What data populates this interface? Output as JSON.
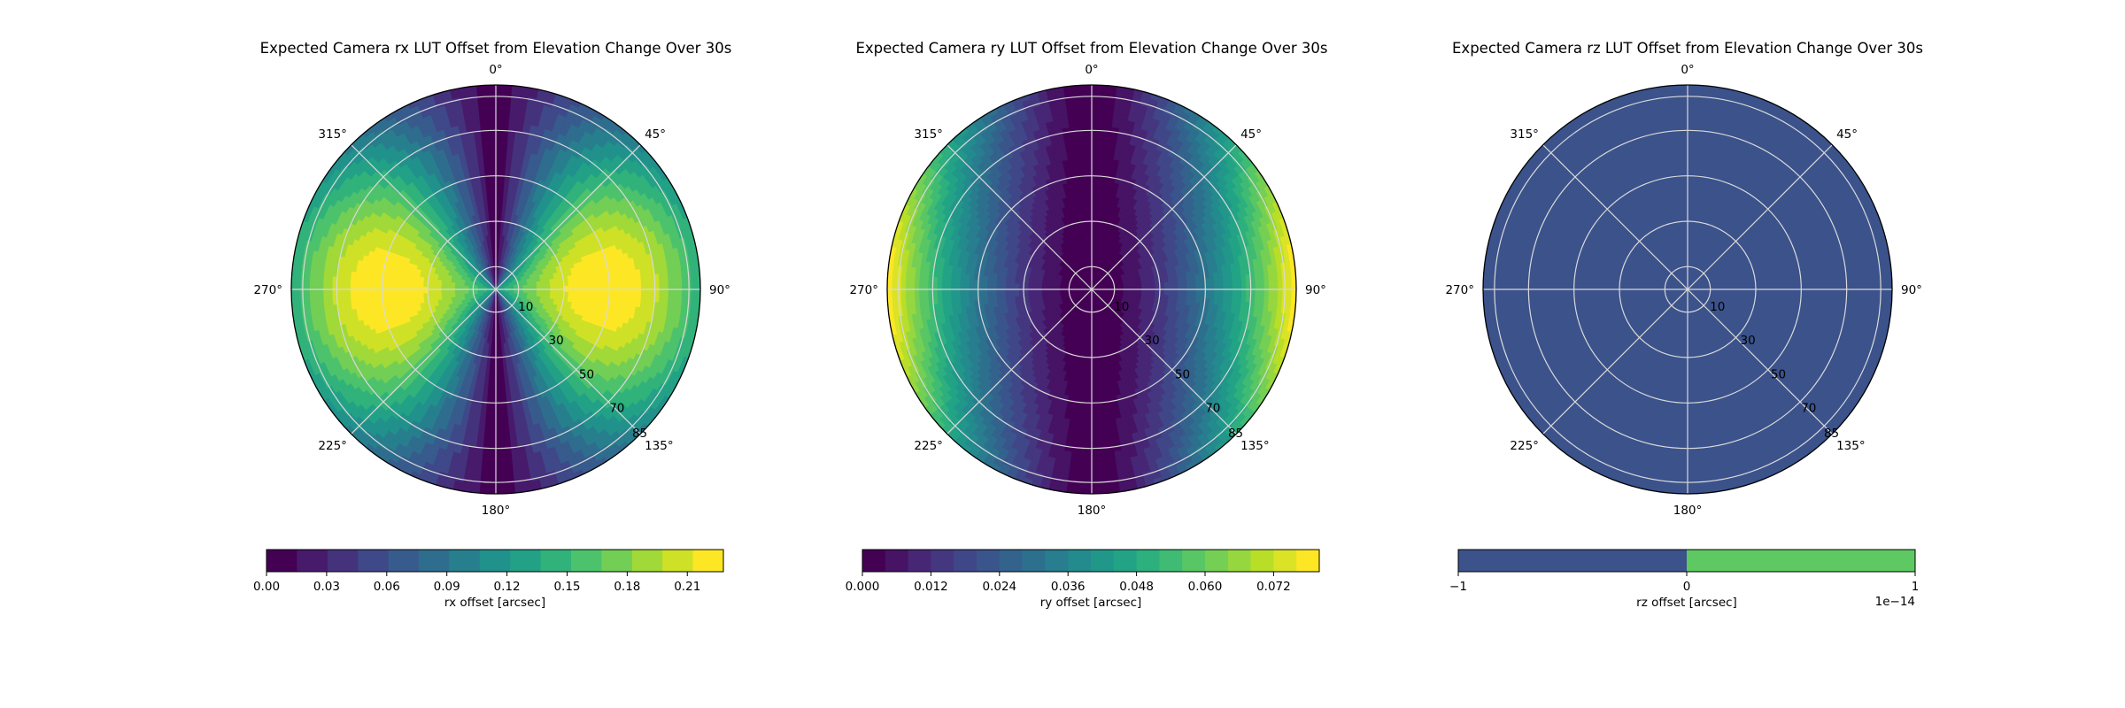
{
  "chart_data": [
    {
      "type": "polar-contourf",
      "title": "Expected Camera rx LUT Offset from Elevation Change Over 30s",
      "theta_tick_labels": [
        "0°",
        "45°",
        "90°",
        "135°",
        "180°",
        "225°",
        "270°",
        "315°"
      ],
      "theta_ticks_deg": [
        0,
        45,
        90,
        135,
        180,
        225,
        270,
        315
      ],
      "r_tick_labels": [
        "10",
        "30",
        "50",
        "70",
        "85"
      ],
      "r_ticks": [
        10,
        30,
        50,
        70,
        85
      ],
      "rlim": [
        0,
        90
      ],
      "theta_zero": "N",
      "theta_direction": "clockwise",
      "pattern": "sin",
      "colorbar": {
        "label": "rx offset [arcsec]",
        "orientation": "horizontal",
        "vmin": 0.0,
        "vmax": 0.228,
        "n_levels": 15,
        "tick_values": [
          0.0,
          0.03,
          0.06,
          0.09,
          0.12,
          0.15,
          0.18,
          0.21
        ],
        "tick_labels": [
          "0.00",
          "0.03",
          "0.06",
          "0.09",
          "0.12",
          "0.15",
          "0.18",
          "0.21"
        ]
      },
      "grid": true
    },
    {
      "type": "polar-contourf",
      "title": "Expected Camera ry LUT Offset from Elevation Change Over 30s",
      "theta_tick_labels": [
        "0°",
        "45°",
        "90°",
        "135°",
        "180°",
        "225°",
        "270°",
        "315°"
      ],
      "theta_ticks_deg": [
        0,
        45,
        90,
        135,
        180,
        225,
        270,
        315
      ],
      "r_tick_labels": [
        "10",
        "30",
        "50",
        "70",
        "85"
      ],
      "r_ticks": [
        10,
        30,
        50,
        70,
        85
      ],
      "rlim": [
        0,
        90
      ],
      "theta_zero": "N",
      "theta_direction": "clockwise",
      "pattern": "sin-cos",
      "colorbar": {
        "label": "ry offset [arcsec]",
        "orientation": "horizontal",
        "vmin": 0.0,
        "vmax": 0.08,
        "n_levels": 20,
        "tick_values": [
          0.0,
          0.012,
          0.024,
          0.036,
          0.048,
          0.06,
          0.072
        ],
        "tick_labels": [
          "0.000",
          "0.012",
          "0.024",
          "0.036",
          "0.048",
          "0.060",
          "0.072"
        ]
      },
      "grid": true
    },
    {
      "type": "polar-contourf",
      "title": "Expected Camera rz LUT Offset from Elevation Change Over 30s",
      "theta_tick_labels": [
        "0°",
        "45°",
        "90°",
        "135°",
        "180°",
        "225°",
        "270°",
        "315°"
      ],
      "theta_ticks_deg": [
        0,
        45,
        90,
        135,
        180,
        225,
        270,
        315
      ],
      "r_tick_labels": [
        "10",
        "30",
        "50",
        "70",
        "85"
      ],
      "r_ticks": [
        10,
        30,
        50,
        70,
        85
      ],
      "rlim": [
        0,
        90
      ],
      "theta_zero": "N",
      "theta_direction": "clockwise",
      "pattern": "constant",
      "colorbar": {
        "label": "rz offset [arcsec]",
        "orientation": "horizontal",
        "vmin": -1,
        "vmax": 1,
        "n_levels": 2,
        "segment_colors": [
          "#3b528b",
          "#5ec962"
        ],
        "tick_values": [
          -1,
          0,
          1
        ],
        "tick_labels": [
          "−1",
          "0",
          "1"
        ],
        "offset_text": "1e−14"
      },
      "grid": true
    }
  ]
}
